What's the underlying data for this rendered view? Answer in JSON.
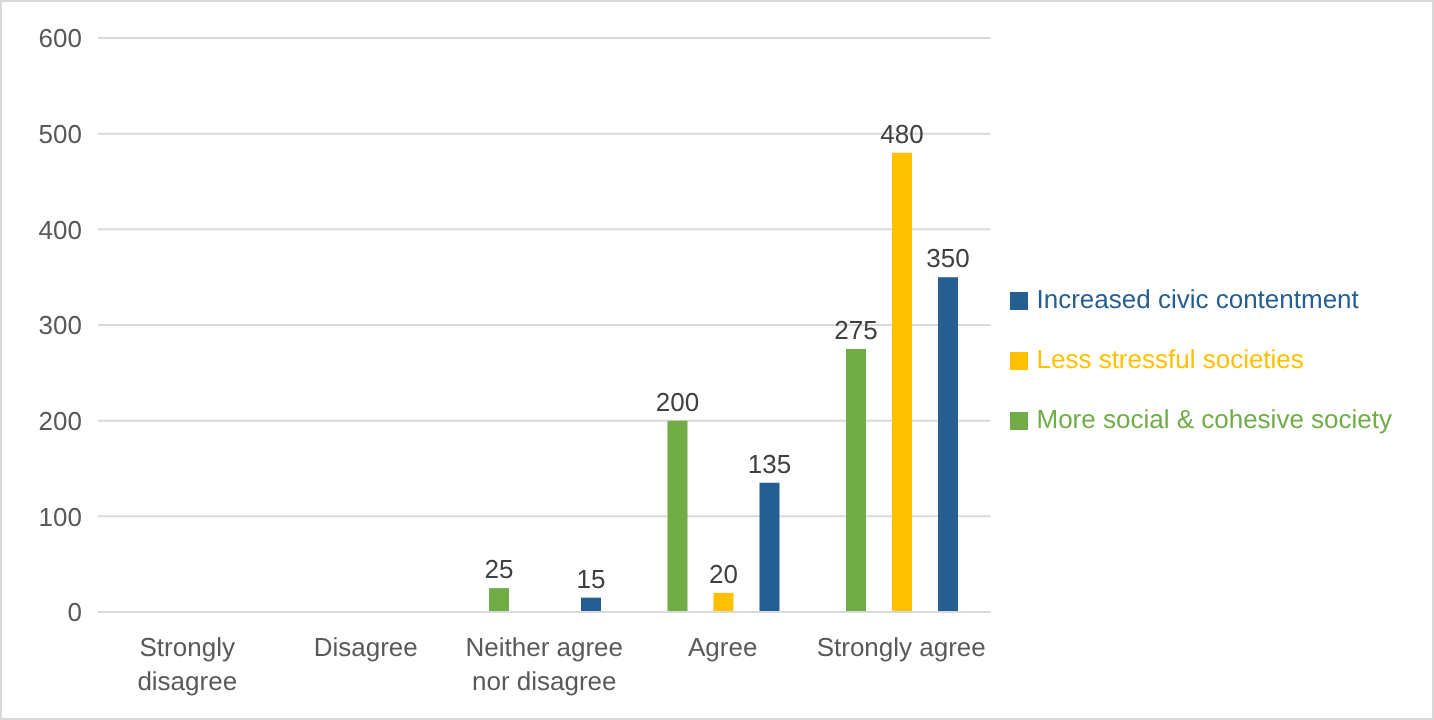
{
  "chart_data": {
    "type": "bar",
    "categories": [
      "Strongly disagree",
      "Disagree",
      "Neither agree nor disagree",
      "Agree",
      "Strongly agree"
    ],
    "series": [
      {
        "name": "More social & cohesive society",
        "color": "#70ad47",
        "values": [
          null,
          null,
          25,
          200,
          275
        ]
      },
      {
        "name": "Less stressful societies",
        "color": "#ffc000",
        "values": [
          null,
          null,
          null,
          20,
          480
        ]
      },
      {
        "name": "Increased civic contentment",
        "color": "#255e91",
        "values": [
          null,
          null,
          15,
          135,
          350
        ]
      }
    ],
    "ylim": [
      0,
      600
    ],
    "yticks": [
      0,
      100,
      200,
      300,
      400,
      500,
      600
    ],
    "grid": "y",
    "legend": "right",
    "data_labels": true
  }
}
